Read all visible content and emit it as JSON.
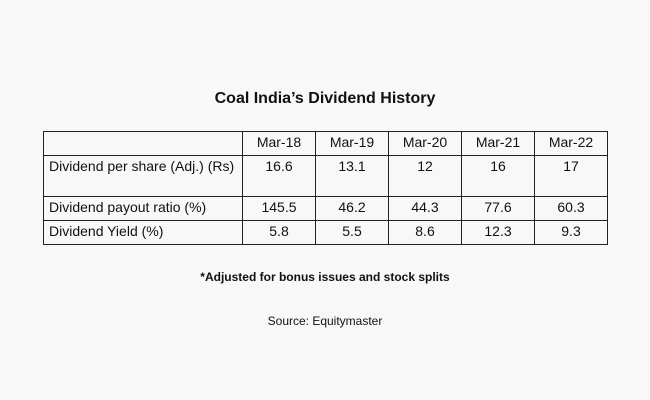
{
  "title": "Coal India’s Dividend History",
  "table": {
    "columns": [
      "",
      "Mar-18",
      "Mar-19",
      "Mar-20",
      "Mar-21",
      "Mar-22"
    ],
    "rows": [
      {
        "label": "Dividend per share (Adj.) (Rs)",
        "values": [
          "16.6",
          "13.1",
          "12",
          "16",
          "17"
        ]
      },
      {
        "label": "Dividend payout ratio (%)",
        "values": [
          "145.5",
          "46.2",
          "44.3",
          "77.6",
          "60.3"
        ]
      },
      {
        "label": "Dividend Yield (%)",
        "values": [
          "5.8",
          "5.5",
          "8.6",
          "12.3",
          "9.3"
        ]
      }
    ]
  },
  "footnote": "*Adjusted for bonus issues and stock splits",
  "source": "Source: Equitymaster"
}
